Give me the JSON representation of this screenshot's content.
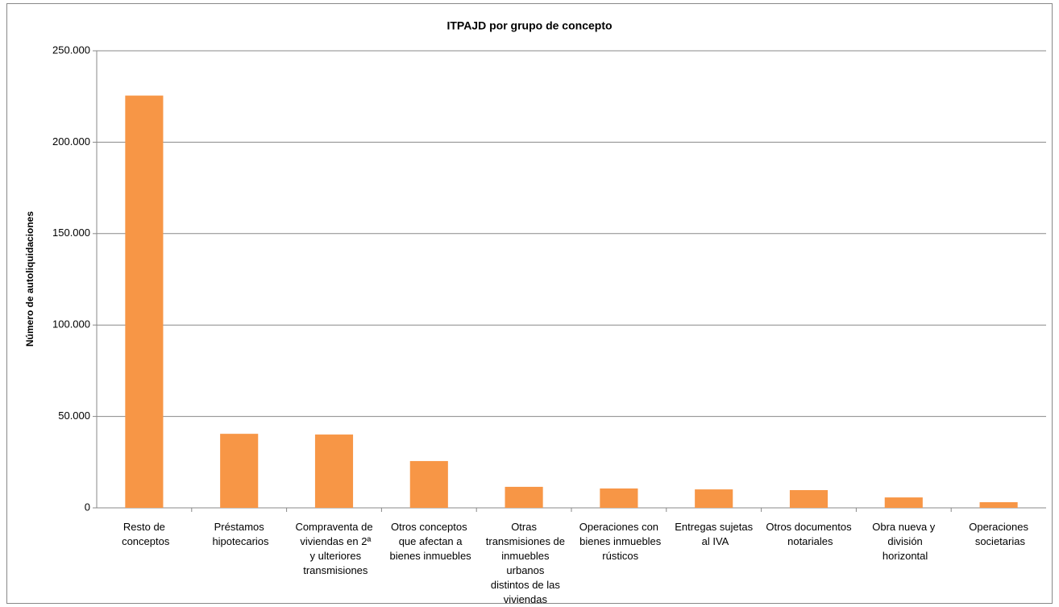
{
  "chart_data": {
    "type": "bar",
    "title": "ITPAJD por grupo de concepto",
    "y_label": "Número de autoliquidaciones",
    "categories": [
      "Resto de conceptos",
      "Préstamos hipotecarios",
      "Compraventa de viviendas en 2ª y ulteriores transmisiones",
      "Otros conceptos que afectan a bienes inmuebles",
      "Otras transmisiones de inmuebles urbanos distintos de las viviendas",
      "Operaciones con bienes inmuebles rústicos",
      "Entregas sujetas al IVA",
      "Otros documentos notariales",
      "Obra nueva y división horizontal",
      "Operaciones societarias"
    ],
    "values": [
      225500,
      40500,
      40100,
      25600,
      11500,
      10600,
      10100,
      9700,
      5700,
      3100
    ],
    "color": "#f79646",
    "ylim": [
      0,
      250000
    ],
    "yticks": [
      0,
      {
        "value": 50000,
        "label": "50.000"
      },
      {
        "value": 100000,
        "label": "100.000"
      },
      {
        "value": 150000,
        "label": "150.000"
      },
      {
        "value": 200000,
        "label": "200.000"
      },
      {
        "value": 250000,
        "label": "250.000"
      }
    ],
    "grid": true
  }
}
